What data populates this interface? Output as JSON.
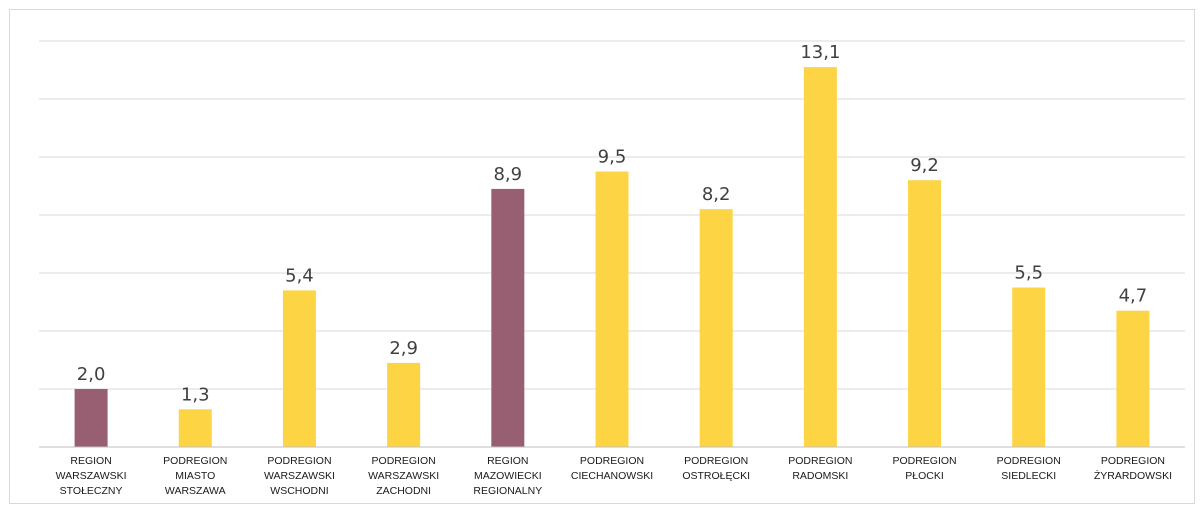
{
  "chart_data": {
    "type": "bar",
    "title": "",
    "xlabel": "",
    "ylabel": "",
    "ylim": [
      0,
      14
    ],
    "ytick_step": 2,
    "grid": true,
    "legend": "none",
    "value_labels": [
      "2,0",
      "1,3",
      "5,4",
      "2,9",
      "8,9",
      "9,5",
      "8,2",
      "13,1",
      "9,2",
      "5,5",
      "4,7"
    ],
    "categories": [
      [
        "REGION",
        "WARSZAWSKI",
        "STOŁECZNY"
      ],
      [
        "PODREGION",
        "MIASTO",
        "WARSZAWA"
      ],
      [
        "PODREGION",
        "WARSZAWSKI",
        "WSCHODNI"
      ],
      [
        "PODREGION",
        "WARSZAWSKI",
        "ZACHODNI"
      ],
      [
        "REGION",
        "MAZOWIECKI",
        "REGIONALNY"
      ],
      [
        "PODREGION",
        "CIECHANOWSKI"
      ],
      [
        "PODREGION",
        "OSTROŁĘCKI"
      ],
      [
        "PODREGION",
        "RADOMSKI"
      ],
      [
        "PODREGION",
        "PŁOCKI"
      ],
      [
        "PODREGION",
        "SIEDLECKI"
      ],
      [
        "PODREGION",
        "ŻYRARDOWSKI"
      ]
    ],
    "values": [
      2.0,
      1.3,
      5.4,
      2.9,
      8.9,
      9.5,
      8.2,
      13.1,
      9.2,
      5.5,
      4.7
    ],
    "bar_colors": [
      "#985F73",
      "#FDD444",
      "#FDD444",
      "#FDD444",
      "#985F73",
      "#FDD444",
      "#FDD444",
      "#FDD444",
      "#FDD444",
      "#FDD444",
      "#FDD444"
    ],
    "colors": {
      "region": "#985F73",
      "subregion": "#FDD444",
      "grid": "#d9d9d9",
      "axis": "#bfbfbf"
    }
  }
}
